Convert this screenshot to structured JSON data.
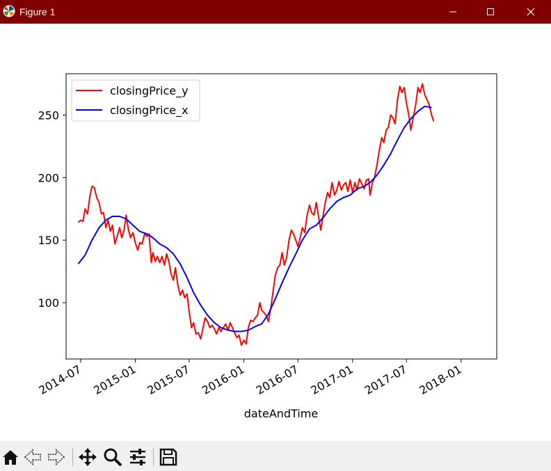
{
  "window": {
    "title": "Figure 1",
    "titlebar_color": "#800000"
  },
  "toolbar": {
    "buttons": [
      {
        "name": "home-icon"
      },
      {
        "name": "back-icon"
      },
      {
        "name": "forward-icon"
      },
      {
        "name": "pan-icon"
      },
      {
        "name": "zoom-icon"
      },
      {
        "name": "configure-subplots-icon"
      },
      {
        "name": "save-icon"
      }
    ]
  },
  "chart_data": {
    "type": "line",
    "xlabel": "dateAndTime",
    "ylabel": "",
    "title": "",
    "x_ticks": [
      "2014-07",
      "2015-01",
      "2015-07",
      "2016-01",
      "2016-07",
      "2017-01",
      "2017-07",
      "2018-01"
    ],
    "y_ticks": [
      100,
      150,
      200,
      250
    ],
    "xlim": [
      "2014-05-13",
      "2018-05-01"
    ],
    "ylim": [
      55,
      283
    ],
    "grid": false,
    "legend_position": "upper left",
    "series": [
      {
        "name": "closingPrice_y",
        "color": "#ff0000",
        "points": [
          [
            "2014-06-23",
            164
          ],
          [
            "2014-07-01",
            166
          ],
          [
            "2014-07-09",
            165
          ],
          [
            "2014-07-16",
            175
          ],
          [
            "2014-07-24",
            171
          ],
          [
            "2014-08-01",
            185
          ],
          [
            "2014-08-08",
            193
          ],
          [
            "2014-08-16",
            192
          ],
          [
            "2014-08-24",
            184
          ],
          [
            "2014-09-01",
            180
          ],
          [
            "2014-09-09",
            171
          ],
          [
            "2014-09-16",
            172
          ],
          [
            "2014-09-24",
            160
          ],
          [
            "2014-10-01",
            166
          ],
          [
            "2014-10-09",
            157
          ],
          [
            "2014-10-16",
            162
          ],
          [
            "2014-10-24",
            147
          ],
          [
            "2014-11-01",
            153
          ],
          [
            "2014-11-09",
            160
          ],
          [
            "2014-11-16",
            152
          ],
          [
            "2014-11-24",
            158
          ],
          [
            "2014-12-01",
            170
          ],
          [
            "2014-12-09",
            158
          ],
          [
            "2014-12-16",
            152
          ],
          [
            "2014-12-24",
            156
          ],
          [
            "2015-01-01",
            148
          ],
          [
            "2015-01-09",
            142
          ],
          [
            "2015-01-16",
            148
          ],
          [
            "2015-01-24",
            147
          ],
          [
            "2015-02-01",
            155
          ],
          [
            "2015-02-09",
            153
          ],
          [
            "2015-02-16",
            155
          ],
          [
            "2015-02-24",
            132
          ],
          [
            "2015-03-01",
            140
          ],
          [
            "2015-03-09",
            133
          ],
          [
            "2015-03-16",
            137
          ],
          [
            "2015-03-24",
            132
          ],
          [
            "2015-04-01",
            137
          ],
          [
            "2015-04-09",
            130
          ],
          [
            "2015-04-16",
            139
          ],
          [
            "2015-04-24",
            133
          ],
          [
            "2015-05-01",
            123
          ],
          [
            "2015-05-09",
            118
          ],
          [
            "2015-05-16",
            128
          ],
          [
            "2015-05-24",
            114
          ],
          [
            "2015-06-01",
            106
          ],
          [
            "2015-06-09",
            110
          ],
          [
            "2015-06-16",
            104
          ],
          [
            "2015-06-24",
            107
          ],
          [
            "2015-07-01",
            93
          ],
          [
            "2015-07-09",
            80
          ],
          [
            "2015-07-16",
            84
          ],
          [
            "2015-07-24",
            75
          ],
          [
            "2015-08-01",
            76
          ],
          [
            "2015-08-09",
            71
          ],
          [
            "2015-08-16",
            79
          ],
          [
            "2015-08-24",
            88
          ],
          [
            "2015-09-01",
            85
          ],
          [
            "2015-09-09",
            80
          ],
          [
            "2015-09-16",
            82
          ],
          [
            "2015-09-24",
            79
          ],
          [
            "2015-10-01",
            75
          ],
          [
            "2015-10-09",
            80
          ],
          [
            "2015-10-16",
            77
          ],
          [
            "2015-10-24",
            80
          ],
          [
            "2015-11-01",
            83
          ],
          [
            "2015-11-09",
            78
          ],
          [
            "2015-11-16",
            84
          ],
          [
            "2015-11-24",
            80
          ],
          [
            "2015-12-01",
            76
          ],
          [
            "2015-12-09",
            72
          ],
          [
            "2015-12-16",
            74
          ],
          [
            "2015-12-24",
            66
          ],
          [
            "2016-01-01",
            70
          ],
          [
            "2016-01-09",
            67
          ],
          [
            "2016-01-16",
            80
          ],
          [
            "2016-01-24",
            86
          ],
          [
            "2016-02-01",
            85
          ],
          [
            "2016-02-09",
            88
          ],
          [
            "2016-02-16",
            90
          ],
          [
            "2016-02-24",
            100
          ],
          [
            "2016-03-01",
            94
          ],
          [
            "2016-03-09",
            92
          ],
          [
            "2016-03-16",
            90
          ],
          [
            "2016-03-24",
            85
          ],
          [
            "2016-04-01",
            96
          ],
          [
            "2016-04-09",
            110
          ],
          [
            "2016-04-16",
            122
          ],
          [
            "2016-04-24",
            128
          ],
          [
            "2016-05-01",
            130
          ],
          [
            "2016-05-09",
            140
          ],
          [
            "2016-05-16",
            130
          ],
          [
            "2016-05-24",
            136
          ],
          [
            "2016-06-01",
            150
          ],
          [
            "2016-06-09",
            158
          ],
          [
            "2016-06-16",
            155
          ],
          [
            "2016-06-24",
            150
          ],
          [
            "2016-07-01",
            145
          ],
          [
            "2016-07-09",
            152
          ],
          [
            "2016-07-16",
            160
          ],
          [
            "2016-07-24",
            156
          ],
          [
            "2016-08-01",
            170
          ],
          [
            "2016-08-09",
            178
          ],
          [
            "2016-08-16",
            172
          ],
          [
            "2016-08-24",
            170
          ],
          [
            "2016-09-01",
            180
          ],
          [
            "2016-09-09",
            168
          ],
          [
            "2016-09-16",
            158
          ],
          [
            "2016-09-24",
            170
          ],
          [
            "2016-10-01",
            180
          ],
          [
            "2016-10-09",
            188
          ],
          [
            "2016-10-16",
            184
          ],
          [
            "2016-10-24",
            196
          ],
          [
            "2016-11-01",
            186
          ],
          [
            "2016-11-09",
            190
          ],
          [
            "2016-11-16",
            197
          ],
          [
            "2016-11-24",
            190
          ],
          [
            "2016-12-01",
            194
          ],
          [
            "2016-12-09",
            196
          ],
          [
            "2016-12-16",
            189
          ],
          [
            "2016-12-24",
            198
          ],
          [
            "2017-01-01",
            188
          ],
          [
            "2017-01-09",
            196
          ],
          [
            "2017-01-16",
            190
          ],
          [
            "2017-01-24",
            199
          ],
          [
            "2017-02-01",
            195
          ],
          [
            "2017-02-09",
            191
          ],
          [
            "2017-02-16",
            198
          ],
          [
            "2017-02-24",
            199
          ],
          [
            "2017-03-01",
            186
          ],
          [
            "2017-03-09",
            196
          ],
          [
            "2017-03-16",
            200
          ],
          [
            "2017-03-24",
            210
          ],
          [
            "2017-04-01",
            222
          ],
          [
            "2017-04-09",
            232
          ],
          [
            "2017-04-16",
            228
          ],
          [
            "2017-04-24",
            238
          ],
          [
            "2017-05-01",
            240
          ],
          [
            "2017-05-09",
            250
          ],
          [
            "2017-05-16",
            248
          ],
          [
            "2017-05-24",
            243
          ],
          [
            "2017-06-01",
            262
          ],
          [
            "2017-06-09",
            273
          ],
          [
            "2017-06-16",
            268
          ],
          [
            "2017-06-24",
            272
          ],
          [
            "2017-07-01",
            260
          ],
          [
            "2017-07-09",
            250
          ],
          [
            "2017-07-16",
            238
          ],
          [
            "2017-07-24",
            248
          ],
          [
            "2017-08-01",
            258
          ],
          [
            "2017-08-09",
            272
          ],
          [
            "2017-08-16",
            268
          ],
          [
            "2017-08-24",
            275
          ],
          [
            "2017-09-01",
            266
          ],
          [
            "2017-09-09",
            262
          ],
          [
            "2017-09-16",
            258
          ],
          [
            "2017-09-24",
            250
          ],
          [
            "2017-10-01",
            245
          ]
        ]
      },
      {
        "name": "closingPrice_x",
        "color": "#0000ff",
        "points": [
          [
            "2014-06-23",
            131
          ],
          [
            "2014-07-16",
            138
          ],
          [
            "2014-08-08",
            150
          ],
          [
            "2014-09-01",
            160
          ],
          [
            "2014-09-24",
            166
          ],
          [
            "2014-10-16",
            169
          ],
          [
            "2014-11-09",
            169
          ],
          [
            "2014-12-01",
            167
          ],
          [
            "2014-12-24",
            162
          ],
          [
            "2015-01-16",
            157
          ],
          [
            "2015-02-09",
            155
          ],
          [
            "2015-03-01",
            152
          ],
          [
            "2015-03-24",
            147
          ],
          [
            "2015-04-16",
            144
          ],
          [
            "2015-05-09",
            139
          ],
          [
            "2015-06-01",
            131
          ],
          [
            "2015-06-24",
            120
          ],
          [
            "2015-07-16",
            108
          ],
          [
            "2015-08-09",
            98
          ],
          [
            "2015-09-01",
            90
          ],
          [
            "2015-09-24",
            84
          ],
          [
            "2015-10-16",
            80
          ],
          [
            "2015-11-09",
            78
          ],
          [
            "2015-12-01",
            77
          ],
          [
            "2015-12-24",
            77
          ],
          [
            "2016-01-16",
            78
          ],
          [
            "2016-02-09",
            81
          ],
          [
            "2016-03-01",
            83
          ],
          [
            "2016-03-24",
            91
          ],
          [
            "2016-04-16",
            103
          ],
          [
            "2016-05-09",
            116
          ],
          [
            "2016-06-01",
            128
          ],
          [
            "2016-06-24",
            139
          ],
          [
            "2016-07-16",
            150
          ],
          [
            "2016-08-09",
            159
          ],
          [
            "2016-09-01",
            162
          ],
          [
            "2016-09-24",
            168
          ],
          [
            "2016-10-16",
            175
          ],
          [
            "2016-11-09",
            181
          ],
          [
            "2016-12-01",
            184
          ],
          [
            "2016-12-24",
            186
          ],
          [
            "2017-01-16",
            191
          ],
          [
            "2017-02-09",
            193
          ],
          [
            "2017-03-01",
            196
          ],
          [
            "2017-03-24",
            202
          ],
          [
            "2017-04-16",
            210
          ],
          [
            "2017-05-09",
            219
          ],
          [
            "2017-06-01",
            230
          ],
          [
            "2017-06-24",
            240
          ],
          [
            "2017-07-16",
            247
          ],
          [
            "2017-08-09",
            253
          ],
          [
            "2017-09-01",
            257
          ],
          [
            "2017-09-24",
            256
          ]
        ]
      }
    ]
  }
}
